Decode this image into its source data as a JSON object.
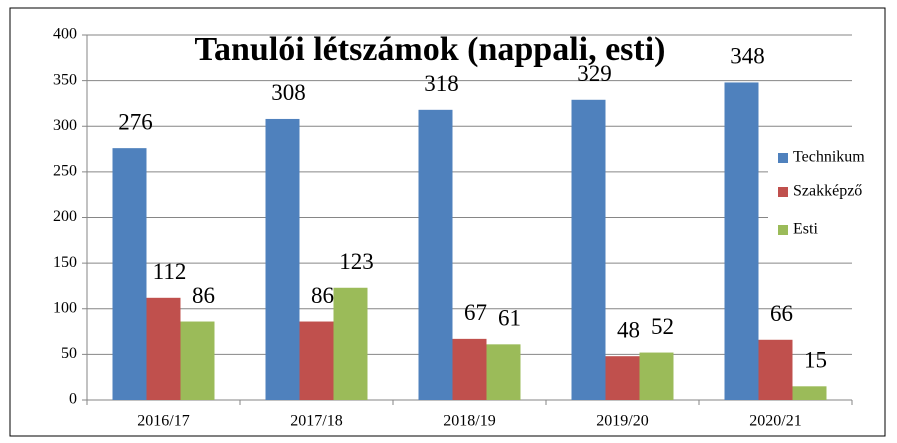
{
  "chart_data": {
    "type": "bar",
    "title": "Tanulói létszámok (nappali, esti)",
    "categories": [
      "2016/17",
      "2017/18",
      "2018/19",
      "2019/20",
      "2020/21"
    ],
    "series": [
      {
        "name": "Technikum",
        "color": "#4f81bd",
        "values": [
          276,
          308,
          318,
          329,
          348
        ]
      },
      {
        "name": "Szakképző",
        "color": "#c0504d",
        "values": [
          112,
          86,
          67,
          48,
          66
        ]
      },
      {
        "name": "Esti",
        "color": "#9bbb59",
        "values": [
          86,
          123,
          61,
          52,
          15
        ]
      }
    ],
    "ylim": [
      0,
      400
    ],
    "yticks": [
      0,
      50,
      100,
      150,
      200,
      250,
      300,
      350,
      400
    ],
    "grid": true,
    "legend": "right"
  }
}
